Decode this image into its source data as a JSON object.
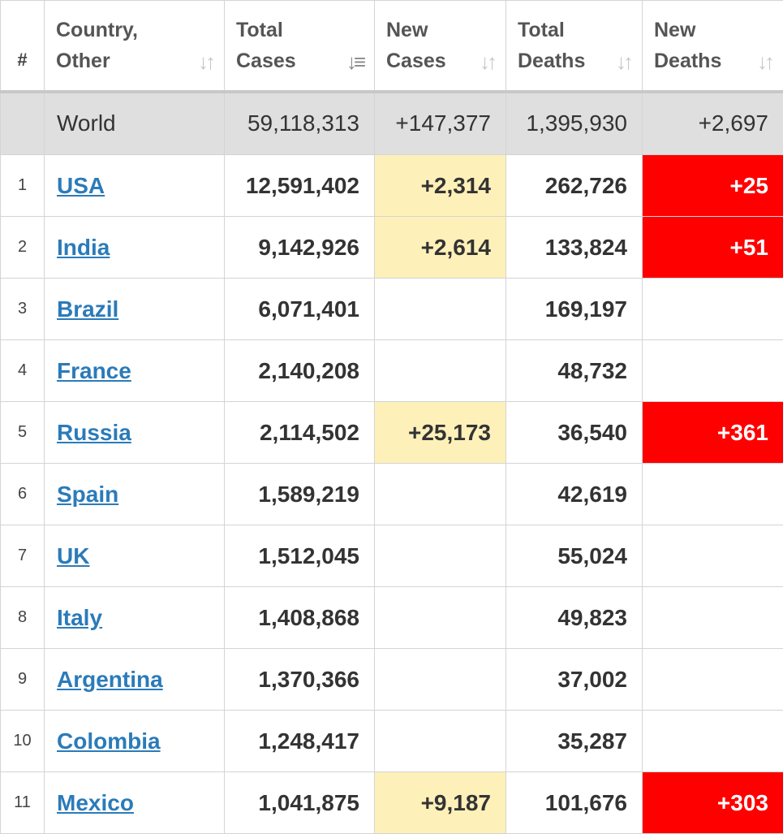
{
  "table": {
    "headers": {
      "rank": "#",
      "country_l1": "Country,",
      "country_l2": "Other",
      "total_cases_l1": "Total",
      "total_cases_l2": "Cases",
      "new_cases_l1": "New",
      "new_cases_l2": "Cases",
      "total_deaths_l1": "Total",
      "total_deaths_l2": "Deaths",
      "new_deaths_l1": "New",
      "new_deaths_l2": "Deaths"
    },
    "sort_icon": "sort-arrows-icon",
    "world": {
      "country": "World",
      "total_cases": "59,118,313",
      "new_cases": "+147,377",
      "total_deaths": "1,395,930",
      "new_deaths": "+2,697"
    },
    "rows": [
      {
        "rank": "1",
        "country": "USA",
        "total_cases": "12,591,402",
        "new_cases": "+2,314",
        "total_deaths": "262,726",
        "new_deaths": "+25"
      },
      {
        "rank": "2",
        "country": "India",
        "total_cases": "9,142,926",
        "new_cases": "+2,614",
        "total_deaths": "133,824",
        "new_deaths": "+51"
      },
      {
        "rank": "3",
        "country": "Brazil",
        "total_cases": "6,071,401",
        "new_cases": "",
        "total_deaths": "169,197",
        "new_deaths": ""
      },
      {
        "rank": "4",
        "country": "France",
        "total_cases": "2,140,208",
        "new_cases": "",
        "total_deaths": "48,732",
        "new_deaths": ""
      },
      {
        "rank": "5",
        "country": "Russia",
        "total_cases": "2,114,502",
        "new_cases": "+25,173",
        "total_deaths": "36,540",
        "new_deaths": "+361"
      },
      {
        "rank": "6",
        "country": "Spain",
        "total_cases": "1,589,219",
        "new_cases": "",
        "total_deaths": "42,619",
        "new_deaths": ""
      },
      {
        "rank": "7",
        "country": "UK",
        "total_cases": "1,512,045",
        "new_cases": "",
        "total_deaths": "55,024",
        "new_deaths": ""
      },
      {
        "rank": "8",
        "country": "Italy",
        "total_cases": "1,408,868",
        "new_cases": "",
        "total_deaths": "49,823",
        "new_deaths": ""
      },
      {
        "rank": "9",
        "country": "Argentina",
        "total_cases": "1,370,366",
        "new_cases": "",
        "total_deaths": "37,002",
        "new_deaths": ""
      },
      {
        "rank": "10",
        "country": "Colombia",
        "total_cases": "1,248,417",
        "new_cases": "",
        "total_deaths": "35,287",
        "new_deaths": ""
      },
      {
        "rank": "11",
        "country": "Mexico",
        "total_cases": "1,041,875",
        "new_cases": "+9,187",
        "total_deaths": "101,676",
        "new_deaths": "+303"
      }
    ]
  },
  "colors": {
    "new_cases_highlight": "#fdf0b9",
    "new_deaths_highlight": "#ff0000",
    "link": "#2b7bb9",
    "world_row_bg": "#dfdfdf"
  }
}
